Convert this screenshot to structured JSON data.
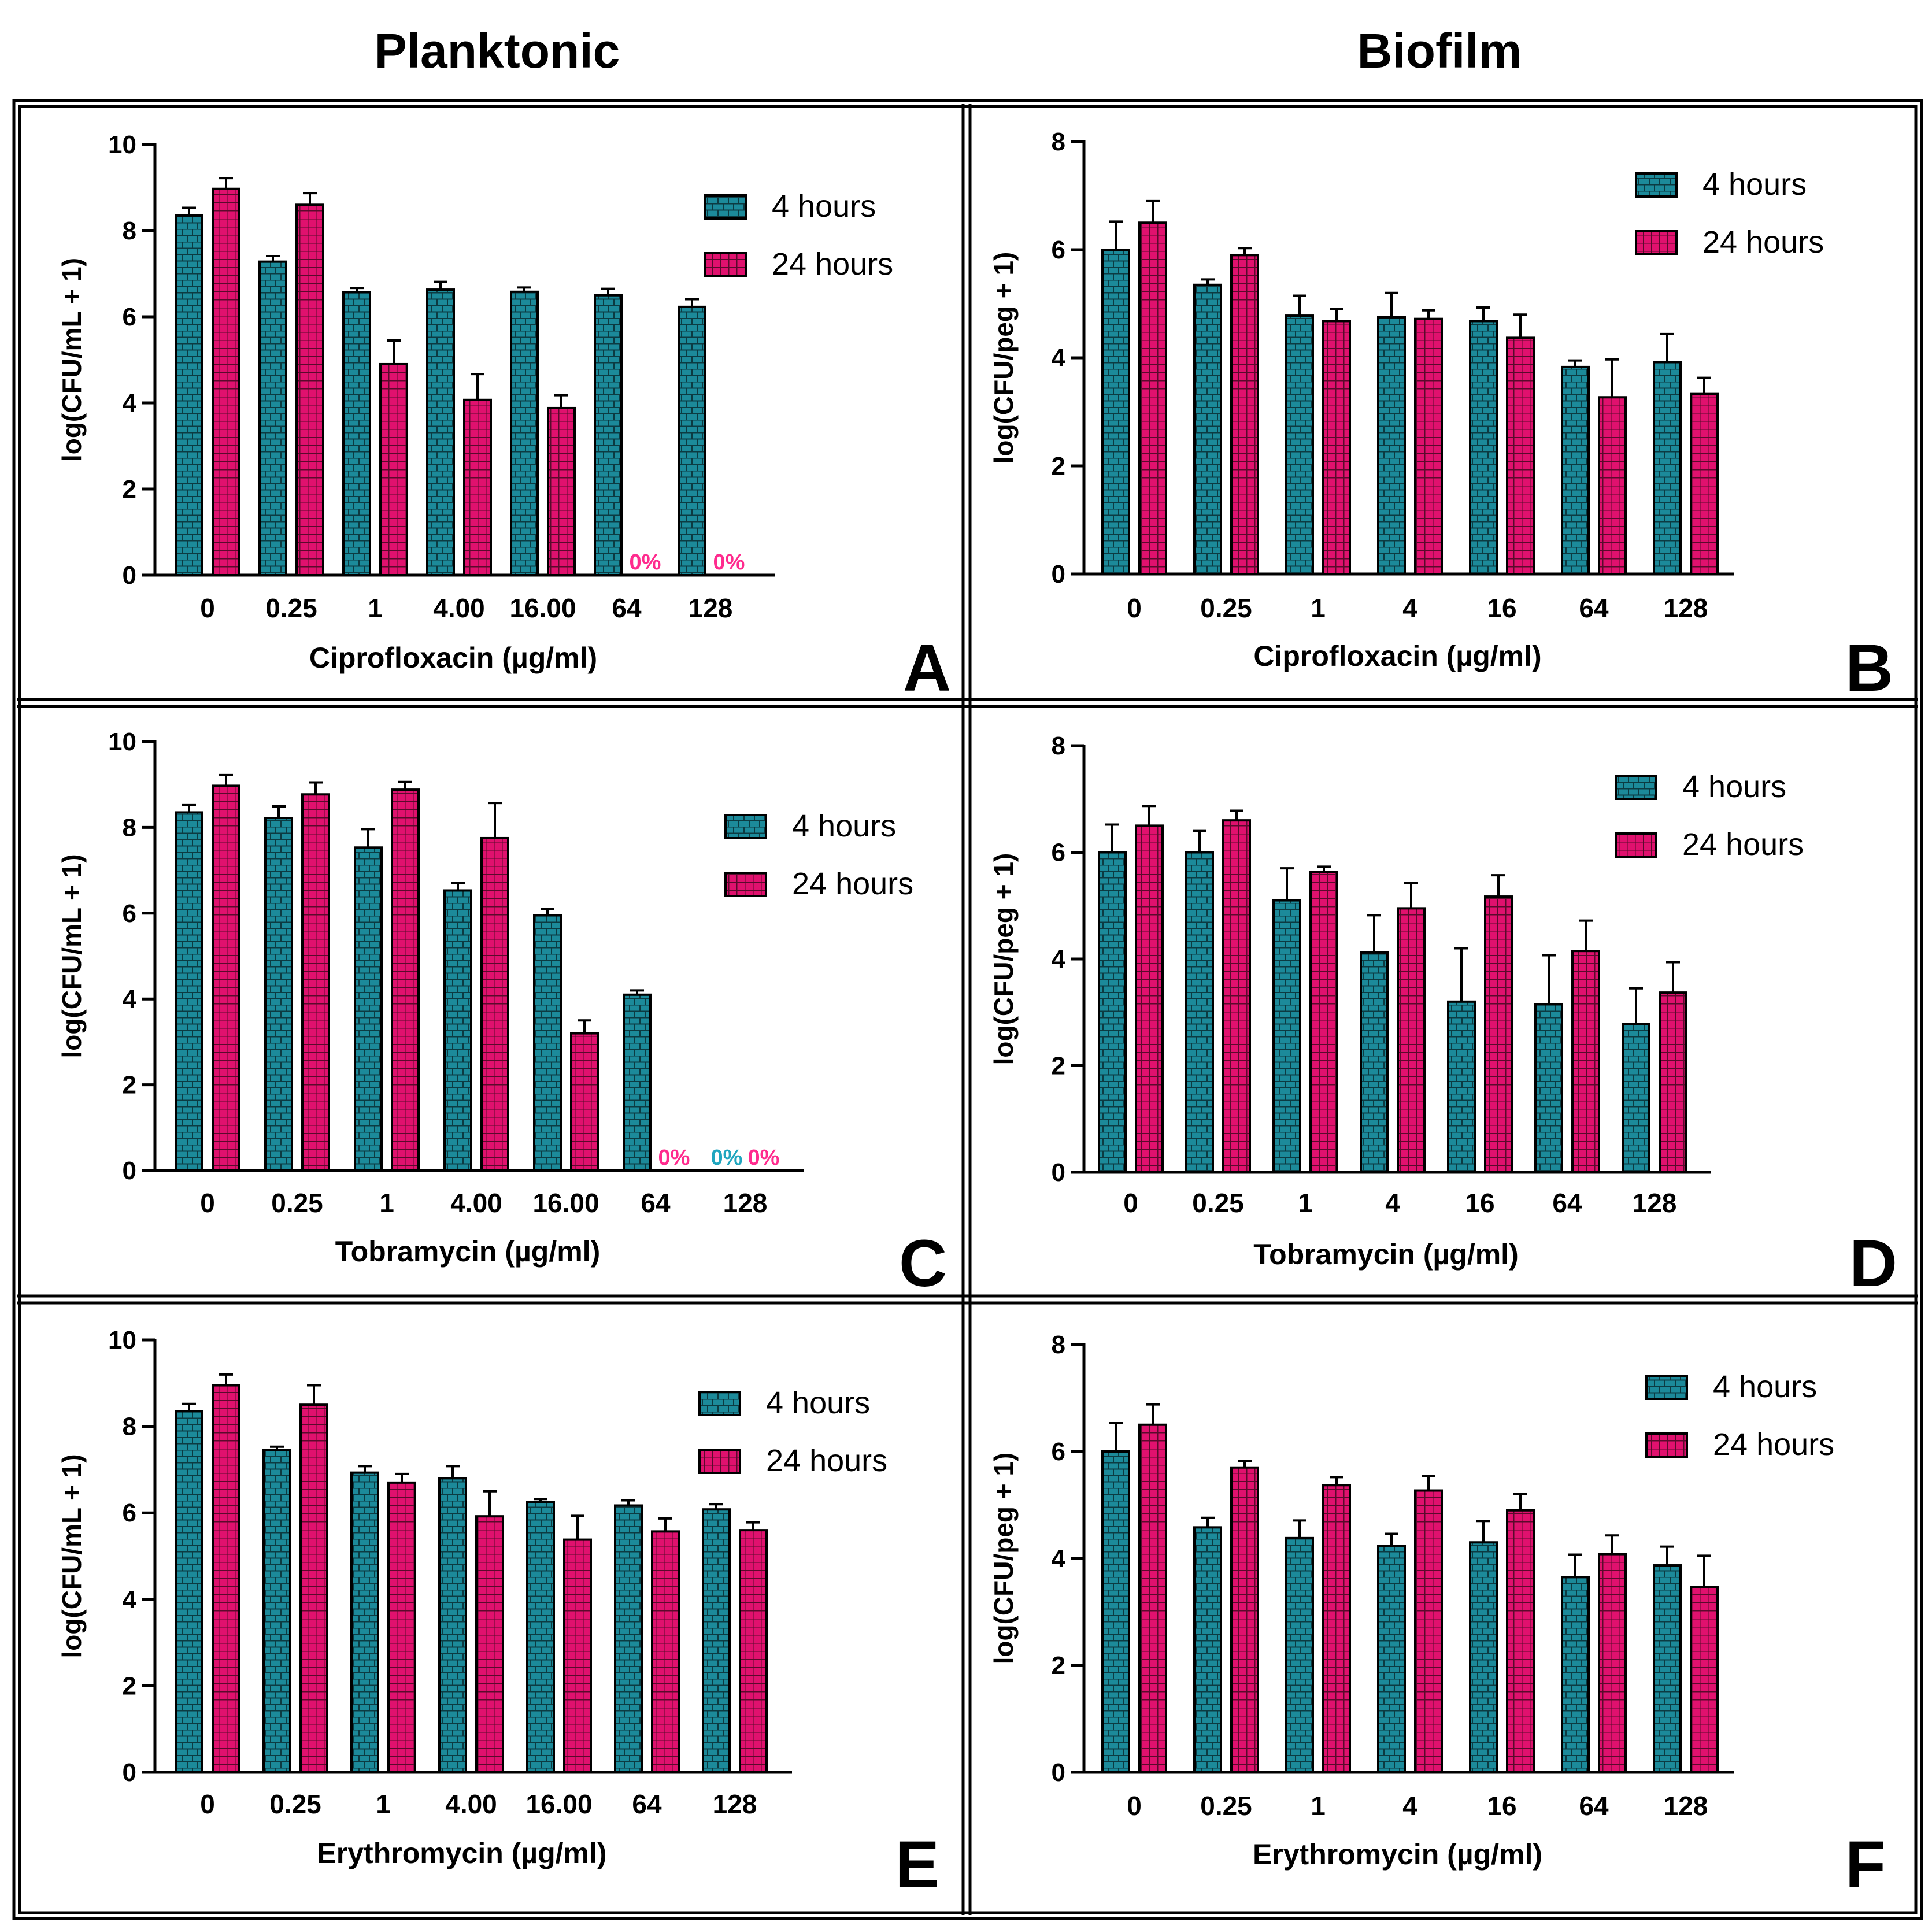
{
  "column_titles": {
    "left": "Planktonic",
    "right": "Biofilm"
  },
  "colors": {
    "hours4": "#1c8a9a",
    "hours24": "#e0116e",
    "zero_label_pink": "#ff2b8e",
    "zero_label_teal": "#20a6bf",
    "frame": "#000000"
  },
  "chart_data": [
    {
      "panel": "A",
      "type": "bar",
      "xlabel": "Ciprofloxacin (µg/ml)",
      "ylabel": "log(CFU/mL + 1)",
      "categories": [
        "0",
        "0.25",
        "1",
        "4.00",
        "16.00",
        "64",
        "128"
      ],
      "ylim": [
        0,
        10
      ],
      "yticks": [
        "0",
        "2",
        "4",
        "6",
        "8",
        "10"
      ],
      "legend": {
        "placement": "top-right",
        "entries": [
          "4 hours",
          "24 hours"
        ]
      },
      "series": [
        {
          "name": "4 hours",
          "values": [
            8.35,
            7.28,
            6.57,
            6.63,
            6.58,
            6.5,
            6.23
          ],
          "errors": [
            0.18,
            0.13,
            0.1,
            0.18,
            0.1,
            0.15,
            0.18
          ]
        },
        {
          "name": "24 hours",
          "values": [
            8.97,
            8.6,
            4.9,
            4.07,
            3.88,
            0,
            0
          ],
          "errors": [
            0.25,
            0.27,
            0.55,
            0.6,
            0.3,
            0,
            0
          ]
        }
      ],
      "zero_labels": [
        {
          "category": "64",
          "series": "24 hours",
          "text": "0%"
        },
        {
          "category": "128",
          "series": "24 hours",
          "text": "0%"
        }
      ]
    },
    {
      "panel": "B",
      "type": "bar",
      "xlabel": "Ciprofloxacin (µg/ml)",
      "ylabel": "log(CFU/peg + 1)",
      "categories": [
        "0",
        "0.25",
        "1",
        "4",
        "16",
        "64",
        "128"
      ],
      "ylim": [
        0,
        8
      ],
      "yticks": [
        "0",
        "2",
        "4",
        "6",
        "8"
      ],
      "legend": {
        "placement": "top-right",
        "entries": [
          "4 hours",
          "24 hours"
        ]
      },
      "series": [
        {
          "name": "4 hours",
          "values": [
            6.0,
            5.35,
            4.78,
            4.75,
            4.68,
            3.83,
            3.92
          ],
          "errors": [
            0.52,
            0.1,
            0.37,
            0.45,
            0.25,
            0.12,
            0.52
          ]
        },
        {
          "name": "24 hours",
          "values": [
            6.5,
            5.9,
            4.68,
            4.72,
            4.37,
            3.27,
            3.33
          ],
          "errors": [
            0.4,
            0.13,
            0.22,
            0.16,
            0.43,
            0.7,
            0.3
          ]
        }
      ],
      "zero_labels": []
    },
    {
      "panel": "C",
      "type": "bar",
      "xlabel": "Tobramycin (µg/ml)",
      "ylabel": "log(CFU/mL + 1)",
      "categories": [
        "0",
        "0.25",
        "1",
        "4.00",
        "16.00",
        "64",
        "128"
      ],
      "ylim": [
        0,
        10
      ],
      "yticks": [
        "0",
        "2",
        "4",
        "6",
        "8",
        "10"
      ],
      "legend": {
        "placement": "top-right",
        "entries": [
          "4 hours",
          "24 hours"
        ]
      },
      "series": [
        {
          "name": "4 hours",
          "values": [
            8.35,
            8.22,
            7.53,
            6.53,
            5.95,
            4.1,
            0
          ],
          "errors": [
            0.17,
            0.27,
            0.43,
            0.18,
            0.15,
            0.1,
            0
          ]
        },
        {
          "name": "24 hours",
          "values": [
            8.97,
            8.77,
            8.88,
            7.75,
            3.2,
            0,
            0
          ],
          "errors": [
            0.25,
            0.28,
            0.18,
            0.82,
            0.3,
            0,
            0
          ]
        }
      ],
      "zero_labels": [
        {
          "category": "64",
          "series": "24 hours",
          "text": "0%"
        },
        {
          "category": "128",
          "series": "4 hours",
          "text": "0%"
        },
        {
          "category": "128",
          "series": "24 hours",
          "text": "0%"
        }
      ]
    },
    {
      "panel": "D",
      "type": "bar",
      "xlabel": "Tobramycin (µg/ml)",
      "ylabel": "log(CFU/peg + 1)",
      "categories": [
        "0",
        "0.25",
        "1",
        "4",
        "16",
        "64",
        "128"
      ],
      "ylim": [
        0,
        8
      ],
      "yticks": [
        "0",
        "2",
        "4",
        "6",
        "8"
      ],
      "legend": {
        "placement": "top-right",
        "entries": [
          "4 hours",
          "24 hours"
        ]
      },
      "series": [
        {
          "name": "4 hours",
          "values": [
            6.0,
            6.0,
            5.1,
            4.12,
            3.2,
            3.15,
            2.78
          ],
          "errors": [
            0.52,
            0.4,
            0.6,
            0.7,
            1.0,
            0.92,
            0.67
          ]
        },
        {
          "name": "24 hours",
          "values": [
            6.5,
            6.6,
            5.63,
            4.95,
            5.17,
            4.15,
            3.37
          ],
          "errors": [
            0.37,
            0.18,
            0.1,
            0.48,
            0.4,
            0.57,
            0.57
          ]
        }
      ],
      "zero_labels": []
    },
    {
      "panel": "E",
      "type": "bar",
      "xlabel": "Erythromycin (µg/ml)",
      "ylabel": "log(CFU/mL + 1)",
      "categories": [
        "0",
        "0.25",
        "1",
        "4.00",
        "16.00",
        "64",
        "128"
      ],
      "ylim": [
        0,
        10
      ],
      "yticks": [
        "0",
        "2",
        "4",
        "6",
        "8",
        "10"
      ],
      "legend": {
        "placement": "top-right",
        "entries": [
          "4 hours",
          "24 hours"
        ]
      },
      "series": [
        {
          "name": "4 hours",
          "values": [
            8.35,
            7.45,
            6.93,
            6.8,
            6.25,
            6.17,
            6.08
          ],
          "errors": [
            0.17,
            0.08,
            0.15,
            0.28,
            0.07,
            0.12,
            0.12
          ]
        },
        {
          "name": "24 hours",
          "values": [
            8.95,
            8.5,
            6.7,
            5.92,
            5.38,
            5.57,
            5.6
          ],
          "errors": [
            0.25,
            0.45,
            0.2,
            0.58,
            0.55,
            0.3,
            0.18
          ]
        }
      ],
      "zero_labels": []
    },
    {
      "panel": "F",
      "type": "bar",
      "xlabel": "Erythromycin (µg/ml)",
      "ylabel": "log(CFU/peg + 1)",
      "categories": [
        "0",
        "0.25",
        "1",
        "4",
        "16",
        "64",
        "128"
      ],
      "ylim": [
        0,
        8
      ],
      "yticks": [
        "0",
        "2",
        "4",
        "6",
        "8"
      ],
      "legend": {
        "placement": "top-right",
        "entries": [
          "4 hours",
          "24 hours"
        ]
      },
      "series": [
        {
          "name": "4 hours",
          "values": [
            6.0,
            4.58,
            4.38,
            4.23,
            4.3,
            3.65,
            3.87
          ],
          "errors": [
            0.53,
            0.18,
            0.33,
            0.23,
            0.4,
            0.42,
            0.35
          ]
        },
        {
          "name": "24 hours",
          "values": [
            6.5,
            5.7,
            5.37,
            5.27,
            4.9,
            4.08,
            3.47
          ],
          "errors": [
            0.38,
            0.12,
            0.15,
            0.27,
            0.3,
            0.35,
            0.58
          ]
        }
      ],
      "zero_labels": []
    }
  ]
}
